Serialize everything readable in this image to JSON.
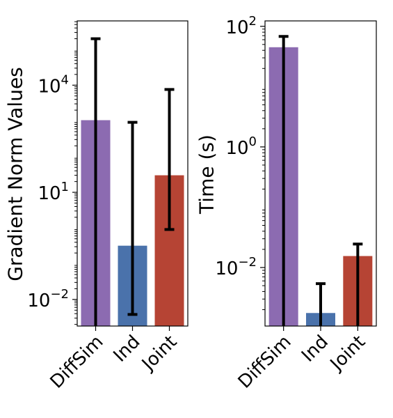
{
  "chart_data": [
    {
      "type": "bar",
      "title": "",
      "xlabel": "",
      "ylabel": "Gradient Norm Values",
      "yscale": "log",
      "ylim": [
        0.0018,
        630957
      ],
      "yticks": [
        {
          "value": 0.01,
          "base": "10",
          "exp": "−2"
        },
        {
          "value": 10,
          "base": "10",
          "exp": "1"
        },
        {
          "value": 10000,
          "base": "10",
          "exp": "4"
        }
      ],
      "categories": [
        "DiffSim",
        "Ind",
        "Joint"
      ],
      "values": [
        1047,
        0.32,
        30
      ],
      "error_low": [
        0.0018,
        0.0038,
        0.91
      ],
      "error_high": [
        200000,
        912,
        7586
      ],
      "colors": [
        "#8c6bb1",
        "#4a72ab",
        "#b64434"
      ],
      "grid": false
    },
    {
      "type": "bar",
      "title": "",
      "xlabel": "",
      "ylabel": "Time (s)",
      "yscale": "log",
      "ylim": [
        0.00107,
        123
      ],
      "yticks": [
        {
          "value": 0.01,
          "base": "10",
          "exp": "−2"
        },
        {
          "value": 1,
          "base": "10",
          "exp": "0"
        },
        {
          "value": 100,
          "base": "10",
          "exp": "2"
        }
      ],
      "categories": [
        "DiffSim",
        "Ind",
        "Joint"
      ],
      "values": [
        45,
        0.00176,
        0.0155
      ],
      "error_low": [
        0.00107,
        0.00107,
        0.00107
      ],
      "error_high": [
        68,
        0.0054,
        0.0245
      ],
      "colors": [
        "#8c6bb1",
        "#4a72ab",
        "#b64434"
      ],
      "grid": false
    }
  ]
}
